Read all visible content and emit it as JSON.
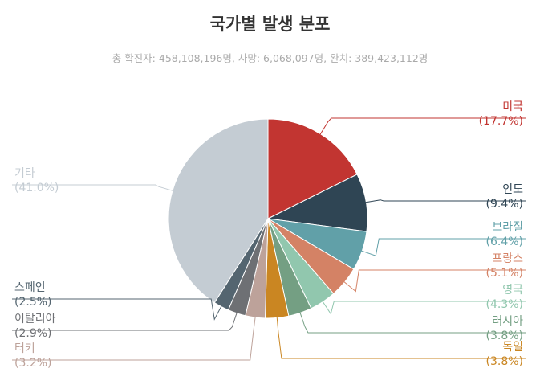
{
  "chart_data": {
    "type": "pie",
    "title": "국가별 발생 분포",
    "subtitle": "총 확진자: 458,108,196명, 사망: 6,068,097명, 완치: 389,423,112명",
    "slices": [
      {
        "name": "미국",
        "value": 17.7,
        "label": "(17.7%)",
        "color": "#c23531",
        "side": "right"
      },
      {
        "name": "인도",
        "value": 9.4,
        "label": "(9.4%)",
        "color": "#2f4554",
        "side": "right"
      },
      {
        "name": "브라질",
        "value": 6.4,
        "label": "(6.4%)",
        "color": "#61a0a8",
        "side": "right"
      },
      {
        "name": "프랑스",
        "value": 5.1,
        "label": "(5.1%)",
        "color": "#d48265",
        "side": "right"
      },
      {
        "name": "영국",
        "value": 4.3,
        "label": "(4.3%)",
        "color": "#91c7ae",
        "side": "right"
      },
      {
        "name": "러시아",
        "value": 3.8,
        "label": "(3.8%)",
        "color": "#749f83",
        "side": "right"
      },
      {
        "name": "독일",
        "value": 3.8,
        "label": "(3.8%)",
        "color": "#ca8622",
        "side": "right"
      },
      {
        "name": "터키",
        "value": 3.2,
        "label": "(3.2%)",
        "color": "#bda29a",
        "side": "left"
      },
      {
        "name": "이탈리아",
        "value": 2.9,
        "label": "(2.9%)",
        "color": "#6e7074",
        "side": "left"
      },
      {
        "name": "스페인",
        "value": 2.5,
        "label": "(2.5%)",
        "color": "#546570",
        "side": "left"
      },
      {
        "name": "기타",
        "value": 41.0,
        "label": "(41.0%)",
        "color": "#c4ccd3",
        "side": "left"
      }
    ]
  }
}
